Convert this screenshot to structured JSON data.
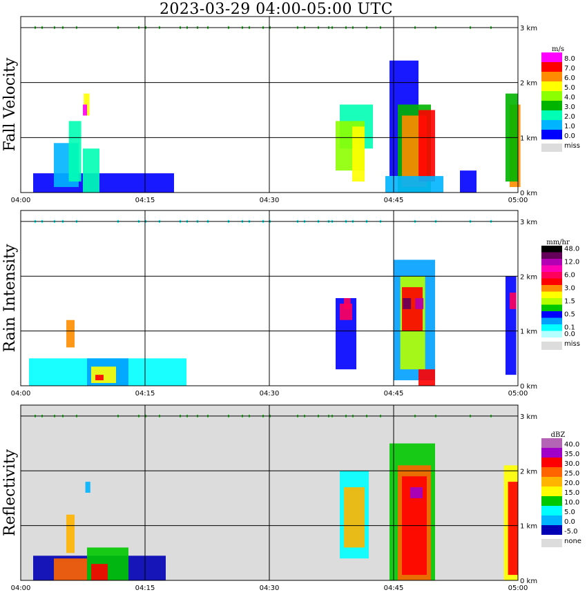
{
  "title": "2023-03-29  04:00-05:00 UTC",
  "time_ticks": [
    "04:00",
    "04:15",
    "04:30",
    "04:45",
    "05:00"
  ],
  "height_ticks": [
    "0 km",
    "1 km",
    "2 km",
    "3 km"
  ],
  "chart_data": [
    {
      "type": "heatmap",
      "ylabel": "Fall Velocity",
      "legend_unit": "m/s",
      "legend": [
        {
          "label": "8.0",
          "color": "#ff00ff"
        },
        {
          "label": "7.0",
          "color": "#ff0000"
        },
        {
          "label": "6.0",
          "color": "#ff8c00"
        },
        {
          "label": "5.0",
          "color": "#ffff00"
        },
        {
          "label": "4.0",
          "color": "#8cff00"
        },
        {
          "label": "3.0",
          "color": "#00b400"
        },
        {
          "label": "2.0",
          "color": "#00ffb4"
        },
        {
          "label": "1.0",
          "color": "#00b4ff"
        },
        {
          "label": "0.0",
          "color": "#0000ff"
        }
      ],
      "missing_label": "miss",
      "x_range": [
        "04:00",
        "05:00"
      ],
      "y_range_km": [
        0,
        3.2
      ]
    },
    {
      "type": "heatmap",
      "ylabel": "Rain Intensity",
      "legend_unit": "mm/hr",
      "legend": [
        {
          "label": "48.0",
          "color": "#000000"
        },
        {
          "label": "",
          "color": "#64005a"
        },
        {
          "label": "12.0",
          "color": "#b400b4"
        },
        {
          "label": "",
          "color": "#ff00b4"
        },
        {
          "label": "6.0",
          "color": "#ff005a"
        },
        {
          "label": "",
          "color": "#ff0000"
        },
        {
          "label": "3.0",
          "color": "#ff8c00"
        },
        {
          "label": "",
          "color": "#ffff00"
        },
        {
          "label": "1.5",
          "color": "#b4ff00"
        },
        {
          "label": "",
          "color": "#00c800"
        },
        {
          "label": "0.5",
          "color": "#0000ff"
        },
        {
          "label": "",
          "color": "#00a0ff"
        },
        {
          "label": "0.1",
          "color": "#00ffff"
        },
        {
          "label": "0.0",
          "color": "#b4ffff"
        }
      ],
      "missing_label": "miss",
      "x_range": [
        "04:00",
        "05:00"
      ],
      "y_range_km": [
        0,
        3.2
      ]
    },
    {
      "type": "heatmap",
      "ylabel": "Reflectivity",
      "legend_unit": "dBZ",
      "legend": [
        {
          "label": "40.0",
          "color": "#b464b4"
        },
        {
          "label": "35.0",
          "color": "#a000c8"
        },
        {
          "label": "30.0",
          "color": "#ff0000"
        },
        {
          "label": "25.0",
          "color": "#ff6400"
        },
        {
          "label": "20.0",
          "color": "#ffb400"
        },
        {
          "label": "15.0",
          "color": "#ffff00"
        },
        {
          "label": "10.0",
          "color": "#00c800"
        },
        {
          "label": "5.0",
          "color": "#00ffff"
        },
        {
          "label": "0.0",
          "color": "#00b4ff"
        },
        {
          "label": "-5.0",
          "color": "#0000b4"
        }
      ],
      "missing_label": "none",
      "x_range": [
        "04:00",
        "05:00"
      ],
      "y_range_km": [
        0,
        3.2
      ]
    }
  ]
}
